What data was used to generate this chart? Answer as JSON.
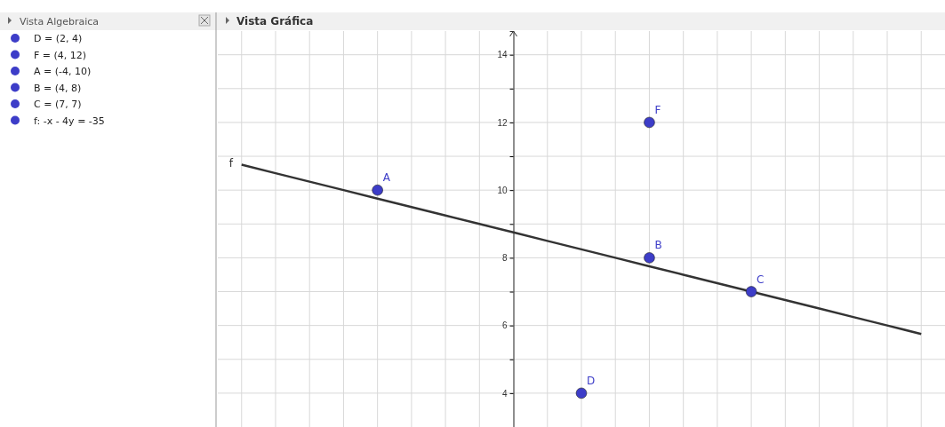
{
  "chart_data": {
    "type": "scatter",
    "title": "Vista Gráfica",
    "categories": [
      null,
      null,
      null,
      null,
      null,
      null,
      null,
      null,
      null,
      null,
      null,
      null,
      null,
      null,
      null,
      null,
      null,
      null,
      null,
      null,
      null
    ],
    "ylim": [
      3,
      14.7
    ],
    "yticks": [
      4,
      {
        "value": 5,
        "label": null
      },
      6,
      {
        "value": 7,
        "label": null
      },
      8,
      {
        "value": 9,
        "label": null
      },
      10,
      {
        "value": 11,
        "label": null
      },
      12,
      {
        "value": 13,
        "label": null
      },
      14
    ],
    "tick_labels": "y",
    "grid": true,
    "series": [
      {
        "color": "#3d3dc8",
        "marker": "circle",
        "values": [
          null,
          null,
          null,
          null,
          10,
          null,
          null,
          null,
          null,
          null,
          4,
          null,
          12,
          null,
          null,
          7,
          null,
          null,
          null,
          null,
          null
        ],
        "value_labels": [
          null,
          null,
          null,
          null,
          "A",
          null,
          null,
          null,
          null,
          null,
          "D",
          null,
          "F",
          null,
          null,
          "C",
          null,
          null,
          null,
          null,
          null
        ]
      },
      {
        "color": "#3d3dc8",
        "marker": "circle",
        "values": [
          null,
          null,
          null,
          null,
          null,
          null,
          null,
          null,
          null,
          null,
          null,
          null,
          8,
          null,
          null,
          null,
          null,
          null,
          null,
          null,
          null
        ],
        "value_labels": [
          null,
          null,
          null,
          null,
          null,
          null,
          null,
          null,
          null,
          null,
          null,
          null,
          "B",
          null,
          null,
          null,
          null,
          null,
          null,
          null,
          null
        ]
      },
      {
        "type": "line",
        "color": "#333333",
        "marker": "none",
        "values": [
          10.75,
          10.5,
          10.25,
          10,
          9.75,
          9.5,
          9.25,
          9,
          8.75,
          8.5,
          8.25,
          8,
          7.75,
          7.5,
          7.25,
          7,
          6.75,
          6.5,
          6.25,
          6,
          5.75
        ],
        "value_labels": [
          "f",
          null,
          null,
          null,
          null,
          null,
          null,
          null,
          null,
          null,
          null,
          null,
          null,
          null,
          null,
          null,
          null,
          null,
          null,
          null,
          null
        ]
      }
    ],
    "annotations": [
      "Vista Algebraica",
      "D = (2, 4)",
      "F = (4, 12)",
      "A = (-4, 10)",
      "B = (4, 8)",
      "C = (7, 7)",
      "f: -x - 4y = -35"
    ]
  }
}
